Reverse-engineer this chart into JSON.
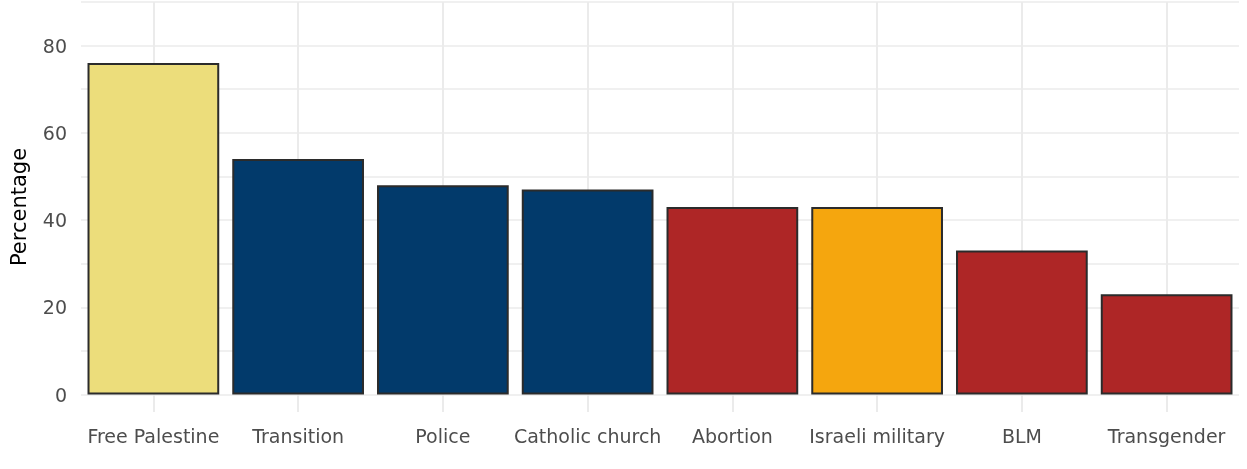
{
  "chart_data": {
    "type": "bar",
    "ylabel": "Percentage",
    "categories": [
      "Free Palestine",
      "Transition",
      "Police",
      "Catholic church",
      "Abortion",
      "Israeli military",
      "BLM",
      "Transgender"
    ],
    "values": [
      76,
      54,
      48,
      47,
      43,
      43,
      33,
      23
    ],
    "colors": [
      "#ecdd7b",
      "#023a6b",
      "#023a6b",
      "#023a6b",
      "#ae2626",
      "#f5a60e",
      "#ae2626",
      "#ae2626"
    ],
    "ylim": [
      -4,
      90
    ],
    "yticks": [
      0,
      {
        "value": 10,
        "label": null
      },
      20,
      {
        "value": 30,
        "label": null
      },
      40,
      {
        "value": 50,
        "label": null
      },
      60,
      {
        "value": 70,
        "label": null
      },
      80,
      {
        "value": 90,
        "label": null
      }
    ],
    "grid": true
  }
}
